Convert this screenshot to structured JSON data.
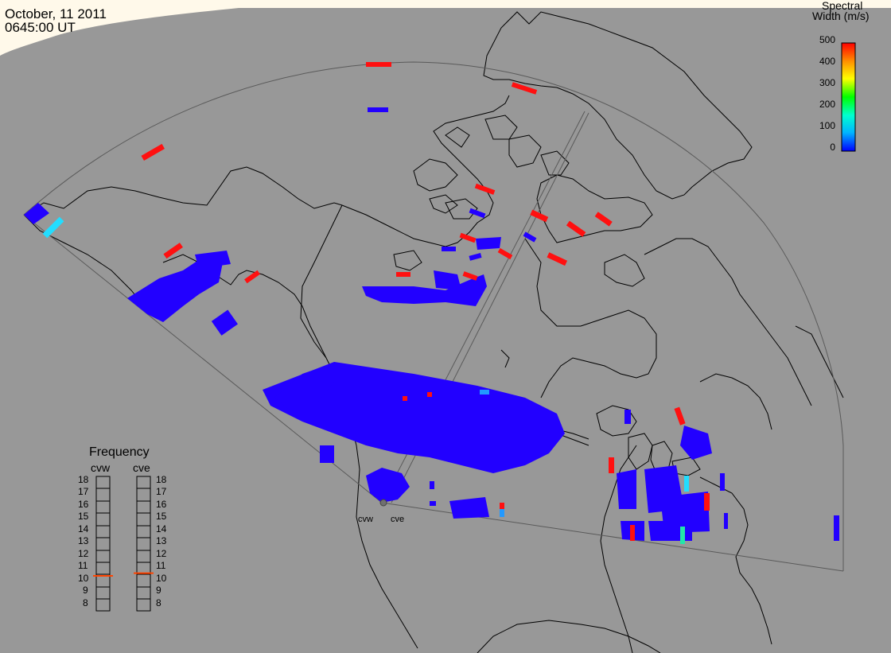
{
  "header": {
    "date": "October, 11 2011",
    "time": "0645:00 UT"
  },
  "colorbar": {
    "title_line1": "Spectral",
    "title_line2": "Width (m/s)",
    "ticks": [
      "500",
      "400",
      "300",
      "200",
      "100",
      "0"
    ],
    "colors": [
      "#0000ff",
      "#00b4ff",
      "#00ffd0",
      "#00ff00",
      "#ffff00",
      "#ff9000",
      "#ff0000"
    ]
  },
  "frequency_panel": {
    "title": "Frequency",
    "radars": [
      "cvw",
      "cve"
    ],
    "scale_labels": [
      "18",
      "17",
      "16",
      "15",
      "14",
      "13",
      "12",
      "11",
      "10",
      "9",
      "8"
    ],
    "current_mhz": {
      "cvw": 10.6,
      "cve": 10.8
    },
    "marker_color": "#ff4400"
  },
  "radar_sites": {
    "west": "cvw",
    "east": "cve"
  },
  "colors": {
    "background": "#989898",
    "low_width": "#2200ff",
    "high_width": "#ff1010",
    "mid_width": "#22ddff",
    "coastline": "#000000",
    "fov_outline": "#555555",
    "sun_terminator": "#fff8e8"
  }
}
